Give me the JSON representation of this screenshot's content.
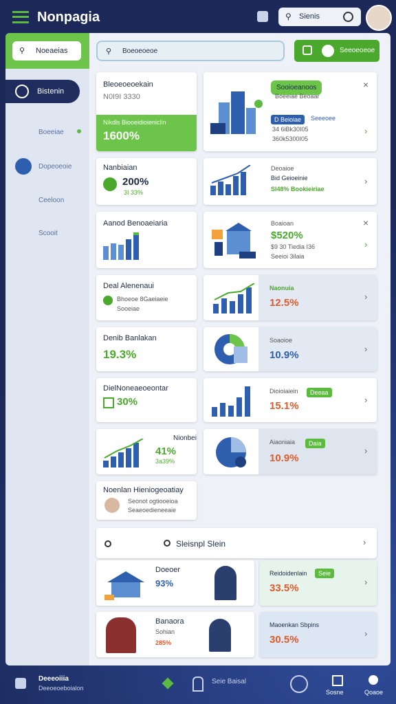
{
  "header": {
    "title": "Nonpagia",
    "search": "Sienis"
  },
  "sidebar": {
    "search": "Noeaeias",
    "items": [
      "Bistenin",
      "Boeeiae",
      "Dopeoeoie",
      "Ceeloon",
      "Scooit"
    ]
  },
  "toolbar": {
    "search": "Boeoeoeoe",
    "button": "Seeoeoeoe"
  },
  "left_cards": [
    {
      "title": "Bleoeoeoekain",
      "subtitle": "N0I9I 3330",
      "band": "Nikdls Biooeidioieniclin",
      "value": "1600%"
    },
    {
      "title": "Nanbiaian",
      "value": "200%",
      "note": "3I 33%"
    },
    {
      "title": "Aanod Benoaeiaria"
    },
    {
      "title": "Deal Alenenaui",
      "subtitle": "Bhoeoe 8Gaeiaeie",
      "note": "Sooeiae"
    },
    {
      "title": "Denib Banlakan",
      "value": "19.3%"
    },
    {
      "title": "DielNoneaeoeontar",
      "value": "30%"
    },
    {
      "title": "Nionbeia",
      "value": "41%",
      "note": "3a39%"
    },
    {
      "title": "Noenlan Hieniogeoatiay",
      "subtitle": "Seonot ogtiooeioa",
      "note": "Seaeoedieneeaie"
    }
  ],
  "right_cards": [
    {
      "badge": "Sooioeanoos",
      "subtitle": "Boeeiae Beoaar",
      "tag1": "D Beioiae",
      "tag2": "Seeeoee",
      "line1": "34 6iBk30I05",
      "line2": "360k5300I05"
    },
    {
      "title": "Deoaioe",
      "line1": "Bid Geioeinie",
      "line2": "SI48% Bookieiriae"
    },
    {
      "title": "Boaioan",
      "value": "$520%",
      "line1": "$9 30 Tiedia I36",
      "line2": "Seeioi 3ilaia"
    },
    {
      "title": "Naonuia",
      "value": "12.5%"
    },
    {
      "title": "Soaoioe",
      "value": "10.9%"
    },
    {
      "title": "Dioioiaiein",
      "badge": "Deeaa",
      "value": "15.1%"
    },
    {
      "title": "Aiaoniaia",
      "badge": "Daia",
      "value": "10.9%"
    }
  ],
  "section": {
    "title": "Sleisnpl Slein"
  },
  "rows": [
    {
      "title": "Doeoer",
      "value": "93%",
      "right_title": "Reidoidenlain",
      "badge": "Seie",
      "right_value": "33.5%"
    },
    {
      "title": "Banaora",
      "subtitle": "Sohian",
      "value": "285%",
      "right_title": "Maoenkan Sbpins",
      "right_value": "30.5%"
    }
  ],
  "footer": {
    "title": "Deeeoiiia",
    "subtitle": "Deeoeoeboialon",
    "center": "Seie Baisal",
    "item1": "Sosne",
    "item2": "Qoaoe"
  }
}
